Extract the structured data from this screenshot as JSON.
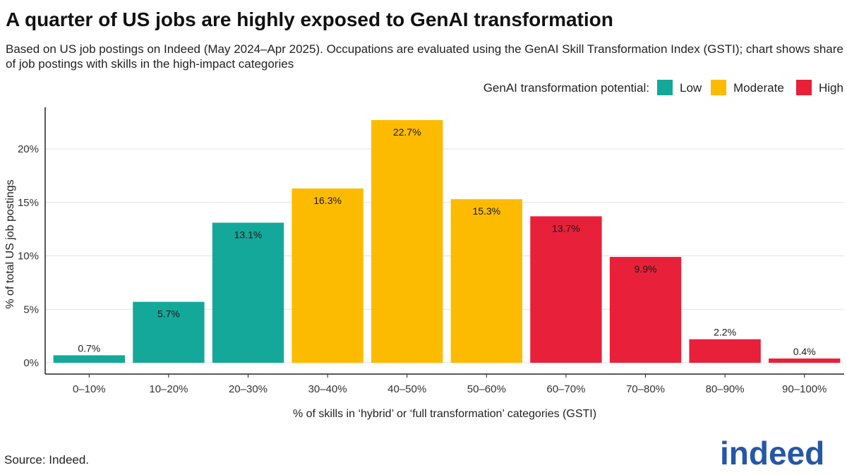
{
  "title": "A quarter of US jobs are highly exposed to GenAI transformation",
  "subtitle": "Based on US job postings on Indeed (May 2024–Apr 2025). Occupations are evaluated using the GenAI Skill Transformation Index (GSTI); chart shows share of job postings with skills in the high-impact categories",
  "source": "Source: Indeed.",
  "logo": {
    "text": "indeed"
  },
  "colors": {
    "Low": "#14a89a",
    "Moderate": "#fdbb00",
    "High": "#e8203a",
    "gridline": "#e3e3e3",
    "axis": "#222222",
    "logo": "#2557a7"
  },
  "chart_data": {
    "type": "bar",
    "title": "A quarter of US jobs are highly exposed to GenAI transformation",
    "xlabel": "% of skills in ‘hybrid’ or ‘full transformation’ categories (GSTI)",
    "ylabel": "% of total US job postings",
    "ylim": [
      0,
      24
    ],
    "yticks": [
      0,
      5,
      10,
      15,
      20
    ],
    "ytick_labels": [
      "0%",
      "5%",
      "10%",
      "15%",
      "20%"
    ],
    "grid": true,
    "legend": {
      "title": "GenAI transformation potential:",
      "position": "top-right",
      "entries": [
        "Low",
        "Moderate",
        "High"
      ]
    },
    "categories": [
      "0–10%",
      "10–20%",
      "20–30%",
      "30–40%",
      "40–50%",
      "50–60%",
      "60–70%",
      "70–80%",
      "80–90%",
      "90–100%"
    ],
    "values": [
      0.7,
      5.7,
      13.1,
      16.3,
      22.7,
      15.3,
      13.7,
      9.9,
      2.2,
      0.4
    ],
    "value_labels": [
      "0.7%",
      "5.7%",
      "13.1%",
      "16.3%",
      "22.7%",
      "15.3%",
      "13.7%",
      "9.9%",
      "2.2%",
      "0.4%"
    ],
    "groups": [
      "Low",
      "Low",
      "Low",
      "Moderate",
      "Moderate",
      "Moderate",
      "High",
      "High",
      "High",
      "High"
    ]
  }
}
